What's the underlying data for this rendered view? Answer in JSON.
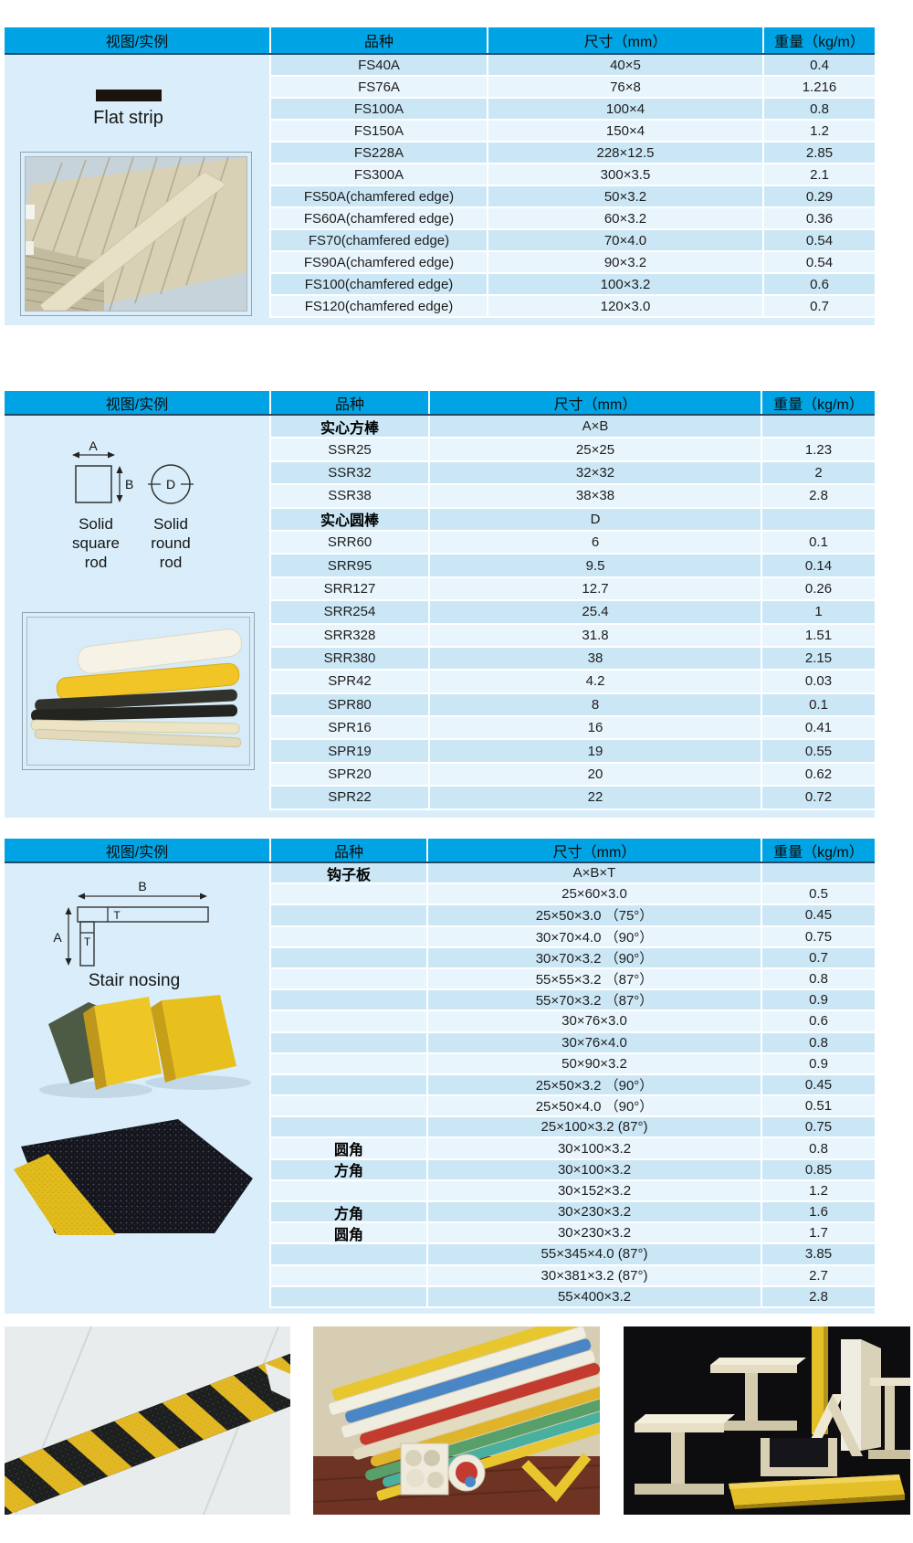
{
  "colors": {
    "header_bg": "#00a4e4",
    "row_dark": "#cbe7f6",
    "row_light": "#e9f5fc",
    "panel_bg": "#d9eefa",
    "strip_black": "#1b130d",
    "safety_yellow": "#e3b820"
  },
  "headers": [
    "视图/实例",
    "品种",
    "尺寸（mm）",
    "重量（kg/m）"
  ],
  "dims": {
    "a": "A",
    "b": "B",
    "d": "D",
    "t": "T"
  },
  "tables": [
    {
      "name": "flat-strip",
      "visual": {
        "caption": "Flat strip"
      },
      "rows": [
        [
          "FS40A",
          "40×5",
          "0.4"
        ],
        [
          "FS76A",
          "76×8",
          "1.216"
        ],
        [
          "FS100A",
          "100×4",
          "0.8"
        ],
        [
          "FS150A",
          "150×4",
          "1.2"
        ],
        [
          "FS228A",
          "228×12.5",
          "2.85"
        ],
        [
          "FS300A",
          "300×3.5",
          "2.1"
        ],
        [
          "FS50A(chamfered edge)",
          "50×3.2",
          "0.29"
        ],
        [
          "FS60A(chamfered edge)",
          "60×3.2",
          "0.36"
        ],
        [
          "FS70(chamfered edge)",
          "70×4.0",
          "0.54"
        ],
        [
          "FS90A(chamfered edge)",
          "90×3.2",
          "0.54"
        ],
        [
          "FS100(chamfered edge)",
          "100×3.2",
          "0.6"
        ],
        [
          "FS120(chamfered edge)",
          "120×3.0",
          "0.7"
        ]
      ]
    },
    {
      "name": "solid-rod",
      "visual": {
        "caption_square": "Solid square rod",
        "caption_round": "Solid round rod"
      },
      "rows": [
        [
          "实心方棒",
          "A×B",
          "",
          true
        ],
        [
          "SSR25",
          "25×25",
          "1.23"
        ],
        [
          "SSR32",
          "32×32",
          "2"
        ],
        [
          "SSR38",
          "38×38",
          "2.8"
        ],
        [
          "实心圆棒",
          "D",
          "",
          true
        ],
        [
          "SRR60",
          "6",
          "0.1"
        ],
        [
          "SRR95",
          "9.5",
          "0.14"
        ],
        [
          "SRR127",
          "12.7",
          "0.26"
        ],
        [
          "SRR254",
          "25.4",
          "1"
        ],
        [
          "SRR328",
          "31.8",
          "1.51"
        ],
        [
          "SRR380",
          "38",
          "2.15"
        ],
        [
          "SPR42",
          "4.2",
          "0.03"
        ],
        [
          "SPR80",
          "8",
          "0.1"
        ],
        [
          "SPR16",
          "16",
          "0.41"
        ],
        [
          "SPR19",
          "19",
          "0.55"
        ],
        [
          "SPR20",
          "20",
          "0.62"
        ],
        [
          "SPR22",
          "22",
          "0.72"
        ]
      ]
    },
    {
      "name": "stair-nosing",
      "visual": {
        "caption": "Stair nosing"
      },
      "rows": [
        [
          "钩子板",
          "A×B×T",
          "",
          true
        ],
        [
          "",
          "25×60×3.0",
          "0.5"
        ],
        [
          "",
          "25×50×3.0 （75°）",
          "0.45"
        ],
        [
          "",
          "30×70×4.0 （90°）",
          "0.75"
        ],
        [
          "",
          "30×70×3.2 （90°）",
          "0.7"
        ],
        [
          "",
          "55×55×3.2 （87°）",
          "0.8"
        ],
        [
          "",
          "55×70×3.2 （87°）",
          "0.9"
        ],
        [
          "",
          "30×76×3.0",
          "0.6"
        ],
        [
          "",
          "30×76×4.0",
          "0.8"
        ],
        [
          "",
          "50×90×3.2",
          "0.9"
        ],
        [
          "",
          "25×50×3.2 （90°）",
          "0.45"
        ],
        [
          "",
          "25×50×4.0 （90°）",
          "0.51"
        ],
        [
          "",
          "25×100×3.2 (87°)",
          "0.75"
        ],
        [
          "圆角",
          "30×100×3.2",
          "0.8",
          true
        ],
        [
          "方角",
          "30×100×3.2",
          "0.85",
          true
        ],
        [
          "",
          "30×152×3.2",
          "1.2"
        ],
        [
          "方角",
          "30×230×3.2",
          "1.6",
          true
        ],
        [
          "圆角",
          "30×230×3.2",
          "1.7",
          true
        ],
        [
          "",
          "55×345×4.0 (87°)",
          "3.85"
        ],
        [
          "",
          "30×381×3.2 (87°)",
          "2.7"
        ],
        [
          "",
          "55×400×3.2",
          "2.8"
        ]
      ]
    }
  ]
}
